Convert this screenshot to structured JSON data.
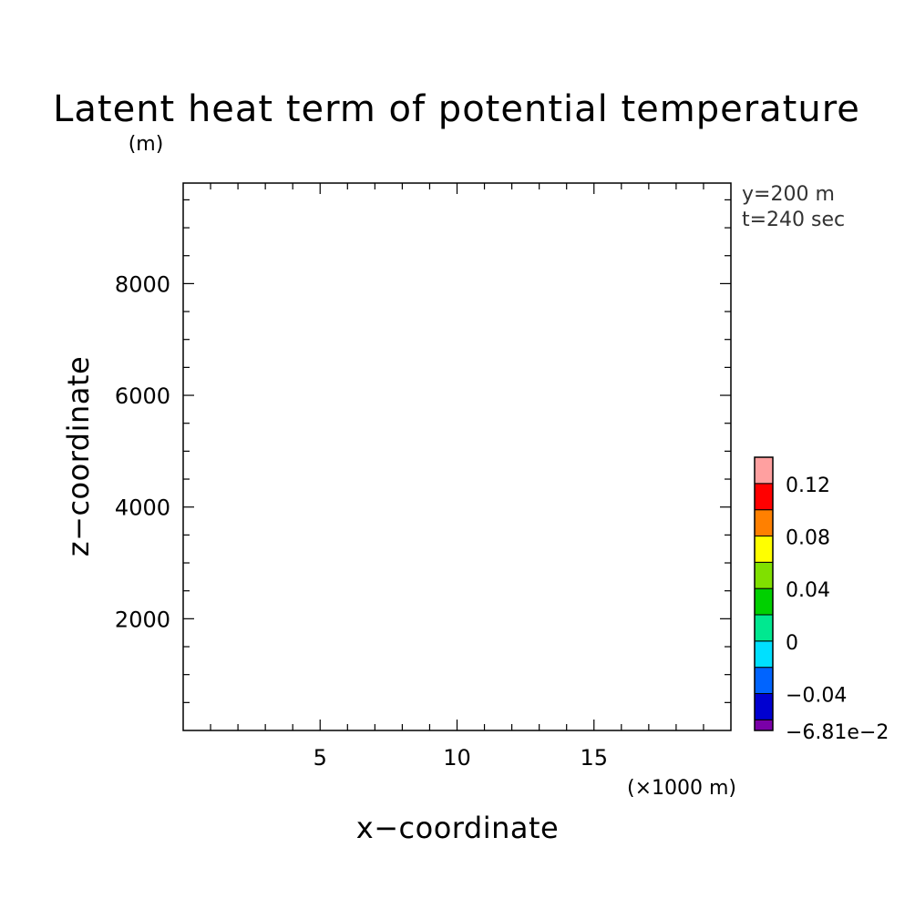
{
  "chart_data": {
    "type": "heatmap",
    "title": "Latent heat term of potential temperature",
    "xlabel": "x−coordinate",
    "ylabel": "z−coordinate",
    "x_unit": "(×1000 m)",
    "y_unit": "(m)",
    "xlim": [
      0,
      20
    ],
    "ylim": [
      0,
      9800
    ],
    "x_major_ticks": [
      5,
      10,
      15
    ],
    "x_tick_labels": [
      "5",
      "10",
      "15"
    ],
    "x_minor_step": 1,
    "y_major_ticks": [
      2000,
      4000,
      6000,
      8000
    ],
    "y_tick_labels": [
      "2000",
      "4000",
      "6000",
      "8000"
    ],
    "y_minor_step": 500,
    "annotations": [
      "y=200 m",
      "t=240 sec"
    ],
    "field": "uniform (no contours visible)",
    "colorbar": {
      "levels": [
        -0.0681,
        -0.06,
        -0.04,
        -0.02,
        0,
        0.02,
        0.04,
        0.06,
        0.08,
        0.1,
        0.12,
        0.14
      ],
      "colors": [
        "#7a00a8",
        "#0000d0",
        "#0064ff",
        "#00e0ff",
        "#00e890",
        "#00d000",
        "#80e000",
        "#ffff00",
        "#ff8000",
        "#ff0000",
        "#ffa0a0"
      ],
      "labels": [
        {
          "value": -0.0681,
          "text": "−6.81e−2"
        },
        {
          "value": -0.04,
          "text": "−0.04"
        },
        {
          "value": 0,
          "text": "0"
        },
        {
          "value": 0.04,
          "text": "0.04"
        },
        {
          "value": 0.08,
          "text": "0.08"
        },
        {
          "value": 0.12,
          "text": "0.12"
        }
      ]
    }
  }
}
